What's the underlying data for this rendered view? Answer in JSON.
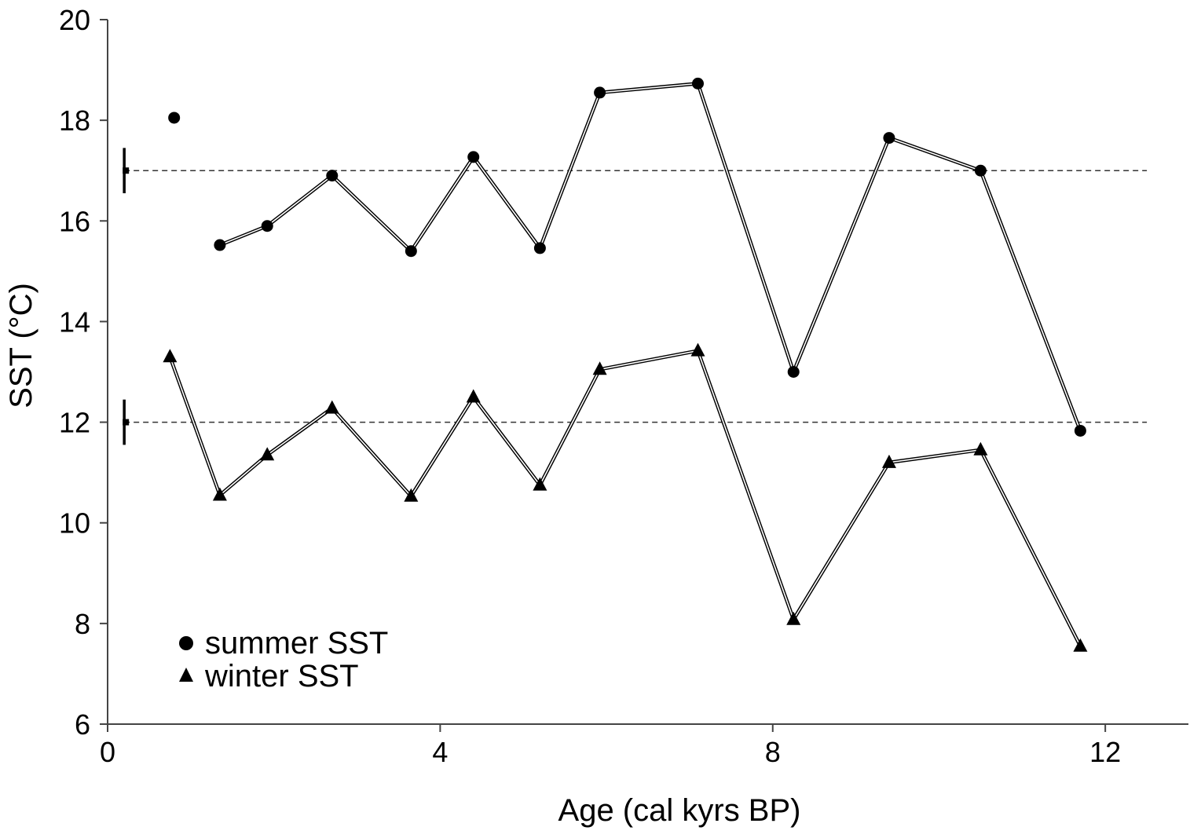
{
  "chart_data": {
    "type": "line",
    "title": "",
    "xlabel": "Age (cal kyrs BP)",
    "ylabel": "SST (°C)",
    "xlim": [
      0,
      13
    ],
    "ylim": [
      6,
      20
    ],
    "xticks": [
      0,
      4,
      8,
      12
    ],
    "yticks": [
      6,
      8,
      10,
      12,
      14,
      16,
      18,
      20
    ],
    "x_tick_labels": [
      "0",
      "4",
      "8",
      "12"
    ],
    "y_tick_labels": [
      "6",
      "8",
      "10",
      "12",
      "14",
      "16",
      "18",
      "20"
    ],
    "grid": false,
    "legend_position": "bottom-left",
    "series": [
      {
        "name": "summer SST",
        "marker": "circle",
        "x": [
          0.8,
          1.35,
          1.92,
          2.7,
          3.65,
          4.4,
          5.2,
          5.92,
          7.1,
          8.25,
          9.4,
          10.5,
          11.7
        ],
        "y": [
          18.05,
          15.52,
          15.9,
          16.9,
          15.4,
          17.27,
          15.46,
          18.55,
          18.73,
          13.0,
          17.65,
          17.0,
          11.83
        ],
        "connected_from_index": 1
      },
      {
        "name": "winter SST",
        "marker": "triangle",
        "x": [
          0.75,
          1.35,
          1.92,
          2.7,
          3.65,
          4.4,
          5.2,
          5.92,
          7.1,
          8.25,
          9.4,
          10.5,
          11.7
        ],
        "y": [
          13.3,
          10.55,
          11.35,
          12.28,
          10.53,
          12.5,
          10.75,
          13.05,
          13.42,
          8.08,
          11.2,
          11.45,
          7.55
        ],
        "connected_from_index": 0
      }
    ],
    "reference_lines": [
      {
        "y": 17.0,
        "style": "dashed",
        "x_start": 0.2,
        "x_end": 12.5
      },
      {
        "y": 12.0,
        "style": "dashed",
        "x_start": 0.2,
        "x_end": 12.5
      }
    ],
    "error_bars": [
      {
        "x": 0.2,
        "y": 17.0,
        "ymin": 16.55,
        "ymax": 17.45
      },
      {
        "x": 0.2,
        "y": 12.0,
        "ymin": 11.55,
        "ymax": 12.45
      }
    ],
    "colors": {
      "marker": "#000000",
      "line": "#000000",
      "axis": "#444444",
      "reference": "#333333"
    }
  }
}
